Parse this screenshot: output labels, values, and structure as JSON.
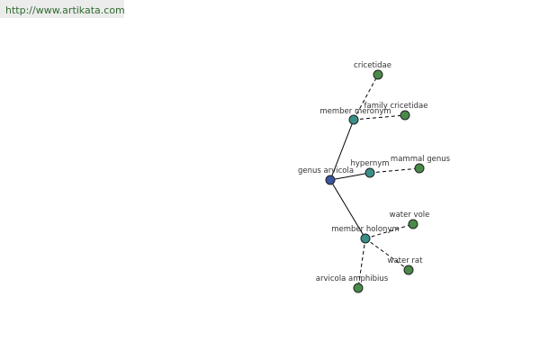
{
  "header": {
    "url": "http://www.artikata.com"
  },
  "nodes": [
    {
      "label": "genus arvicola"
    },
    {
      "label": "member meronym"
    },
    {
      "label": "cricetidae"
    },
    {
      "label": "family cricetidae"
    },
    {
      "label": "hypernym"
    },
    {
      "label": "mammal genus"
    },
    {
      "label": "member holonym"
    },
    {
      "label": "water vole"
    },
    {
      "label": "water rat"
    },
    {
      "label": "arvicola amphibius"
    }
  ]
}
